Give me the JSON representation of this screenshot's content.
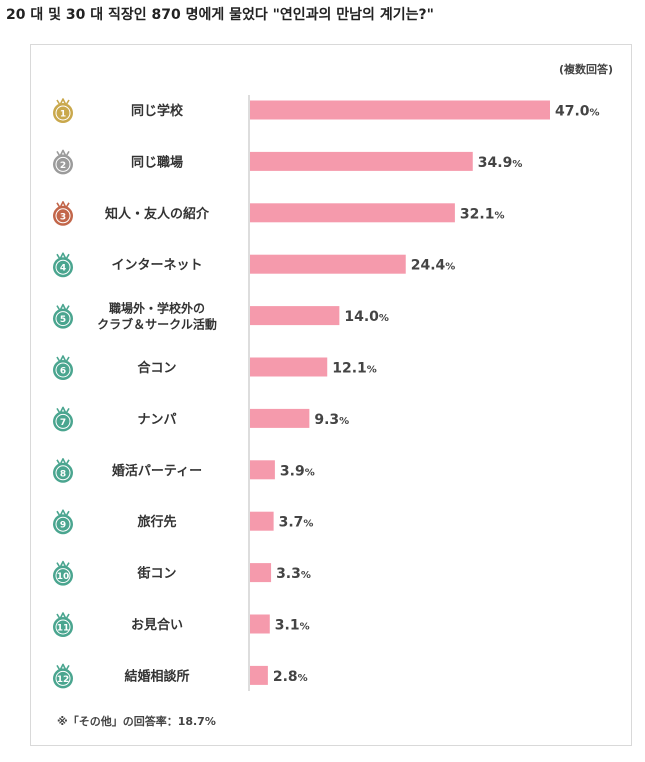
{
  "page": {
    "title": "20 대 및 30 대 직장인 870 명에게 물었다 \"연인과의 만남의 계기는?\""
  },
  "chart_data": {
    "type": "bar",
    "orientation": "horizontal",
    "note": "(複数回答)",
    "footnote": "※「その他」の回答率：18.7%",
    "unit": "%",
    "xlim": [
      0,
      47
    ],
    "categories": [
      {
        "rank": "1",
        "label": [
          "同じ学校"
        ],
        "value": 47.0,
        "medal_color": "#c9a84c"
      },
      {
        "rank": "2",
        "label": [
          "同じ職場"
        ],
        "value": 34.9,
        "medal_color": "#9b9b9b"
      },
      {
        "rank": "3",
        "label": [
          "知人・友人の紹介"
        ],
        "value": 32.1,
        "medal_color": "#c2664a"
      },
      {
        "rank": "4",
        "label": [
          "インターネット"
        ],
        "value": 24.4,
        "medal_color": "#4aa58f"
      },
      {
        "rank": "5",
        "label": [
          "職場外・学校外の",
          "クラブ＆サークル活動"
        ],
        "value": 14.0,
        "medal_color": "#4aa58f"
      },
      {
        "rank": "6",
        "label": [
          "合コン"
        ],
        "value": 12.1,
        "medal_color": "#4aa58f"
      },
      {
        "rank": "7",
        "label": [
          "ナンパ"
        ],
        "value": 9.3,
        "medal_color": "#4aa58f"
      },
      {
        "rank": "8",
        "label": [
          "婚活パーティー"
        ],
        "value": 3.9,
        "medal_color": "#4aa58f"
      },
      {
        "rank": "9",
        "label": [
          "旅行先"
        ],
        "value": 3.7,
        "medal_color": "#4aa58f"
      },
      {
        "rank": "10",
        "label": [
          "街コン"
        ],
        "value": 3.3,
        "medal_color": "#4aa58f"
      },
      {
        "rank": "11",
        "label": [
          "お見合い"
        ],
        "value": 3.1,
        "medal_color": "#4aa58f"
      },
      {
        "rank": "12",
        "label": [
          "結婚相談所"
        ],
        "value": 2.8,
        "medal_color": "#4aa58f"
      }
    ],
    "bar_color": "#f59aac",
    "axis_color": "#bbbbbb"
  }
}
